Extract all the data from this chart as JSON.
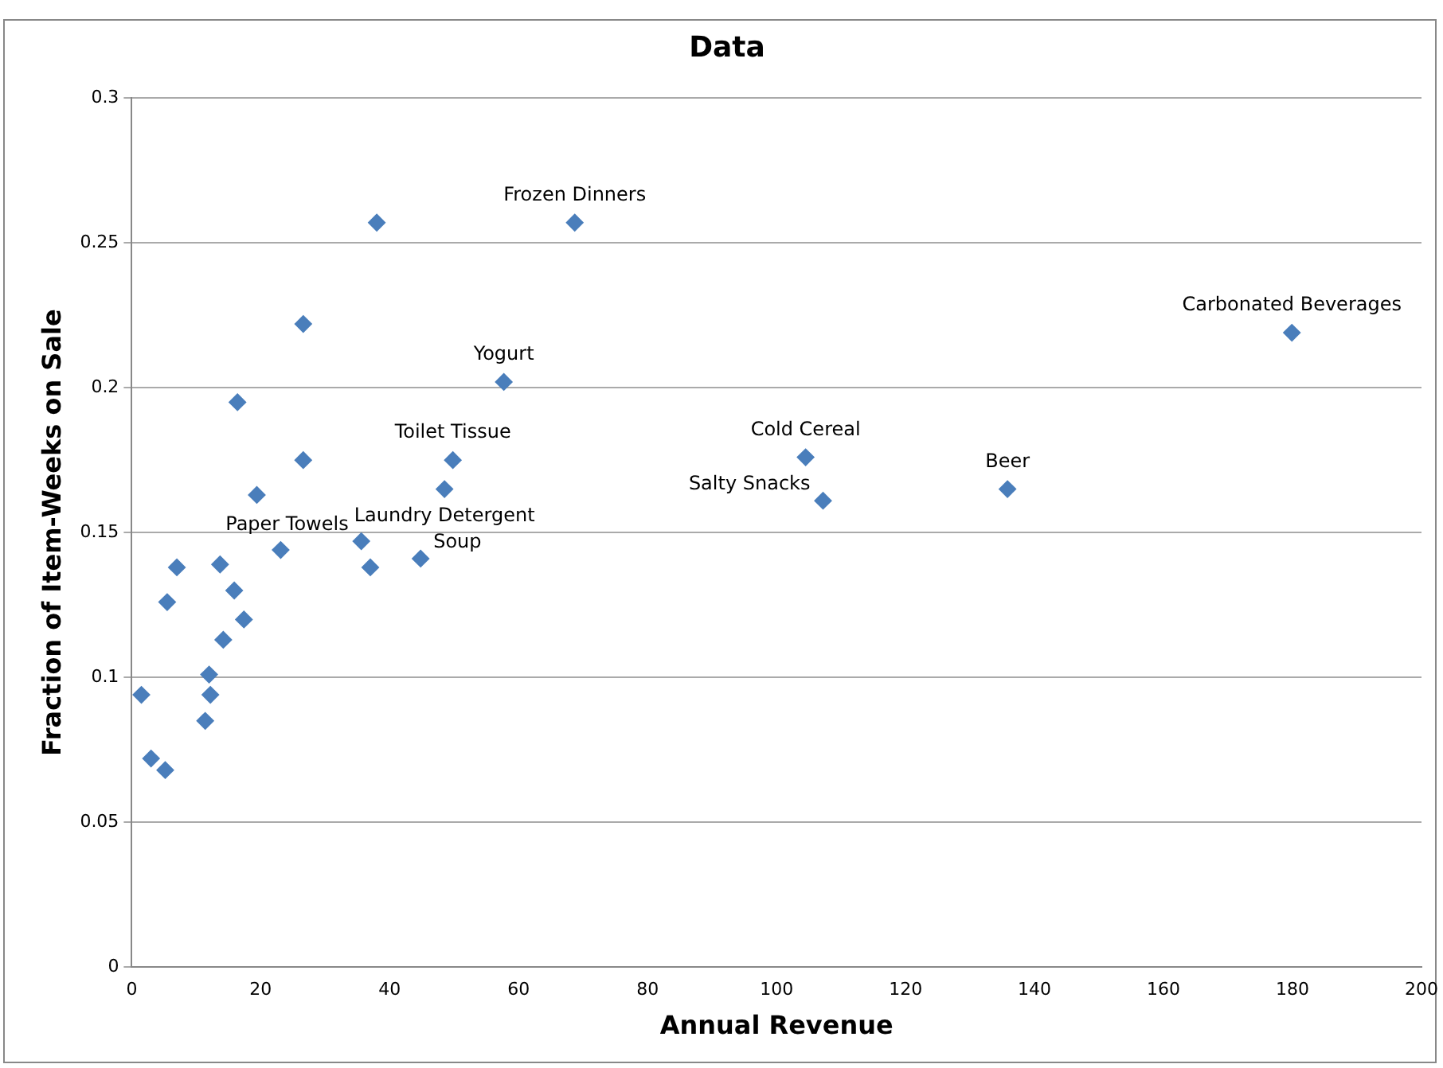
{
  "chart_data": {
    "type": "scatter",
    "title": "Data",
    "xlabel": "Annual Revenue",
    "ylabel": "Fraction of Item-Weeks on Sale",
    "x": [
      1.5,
      3,
      5.2,
      5.5,
      7,
      11.4,
      12,
      12.2,
      14.2,
      13.7,
      15.9,
      17.4,
      16.4,
      19.4,
      23.1,
      26.6,
      26.6,
      38,
      35.6,
      37,
      44.8,
      48.5,
      49.8,
      57.7,
      68.7,
      104.5,
      107.2,
      135.8,
      179.9
    ],
    "series": [
      {
        "color": "#4a7ebb",
        "values": [
          0.094,
          0.072,
          0.068,
          0.126,
          0.138,
          0.085,
          0.101,
          0.094,
          0.113,
          0.139,
          0.13,
          0.12,
          0.195,
          0.163,
          0.144,
          0.222,
          0.175,
          0.257,
          0.147,
          0.138,
          0.141,
          0.165,
          0.175,
          0.202,
          0.257,
          0.176,
          0.161,
          0.165,
          0.219
        ]
      }
    ],
    "xlim": [
      0,
      200
    ],
    "xticks": [
      0,
      20,
      40,
      60,
      80,
      100,
      120,
      140,
      160,
      180,
      200
    ],
    "ylim": [
      0,
      0.3
    ],
    "yticks": [
      0,
      0.05,
      0.1,
      0.15,
      0.2,
      0.25,
      0.3
    ],
    "grid": "y",
    "legend": false,
    "marker": "diamond",
    "annotations": [
      {
        "text": "Frozen Dinners",
        "x": 68.7,
        "y": 0.257
      },
      {
        "text": "Yogurt",
        "x": 57.7,
        "y": 0.202
      },
      {
        "text": "Toilet Tissue",
        "x": 49.8,
        "y": 0.175
      },
      {
        "text": "Laundry Detergent",
        "x": 48.5,
        "y": 0.165
      },
      {
        "text": "Paper Towels",
        "x": 35.6,
        "y": 0.147
      },
      {
        "text": "Soup",
        "x": 44.8,
        "y": 0.141
      },
      {
        "text": "Cold Cereal",
        "x": 104.5,
        "y": 0.176
      },
      {
        "text": "Salty Snacks",
        "x": 107.2,
        "y": 0.161
      },
      {
        "text": "Beer",
        "x": 135.8,
        "y": 0.165
      },
      {
        "text": "Carbonated Beverages",
        "x": 179.9,
        "y": 0.219
      }
    ]
  }
}
